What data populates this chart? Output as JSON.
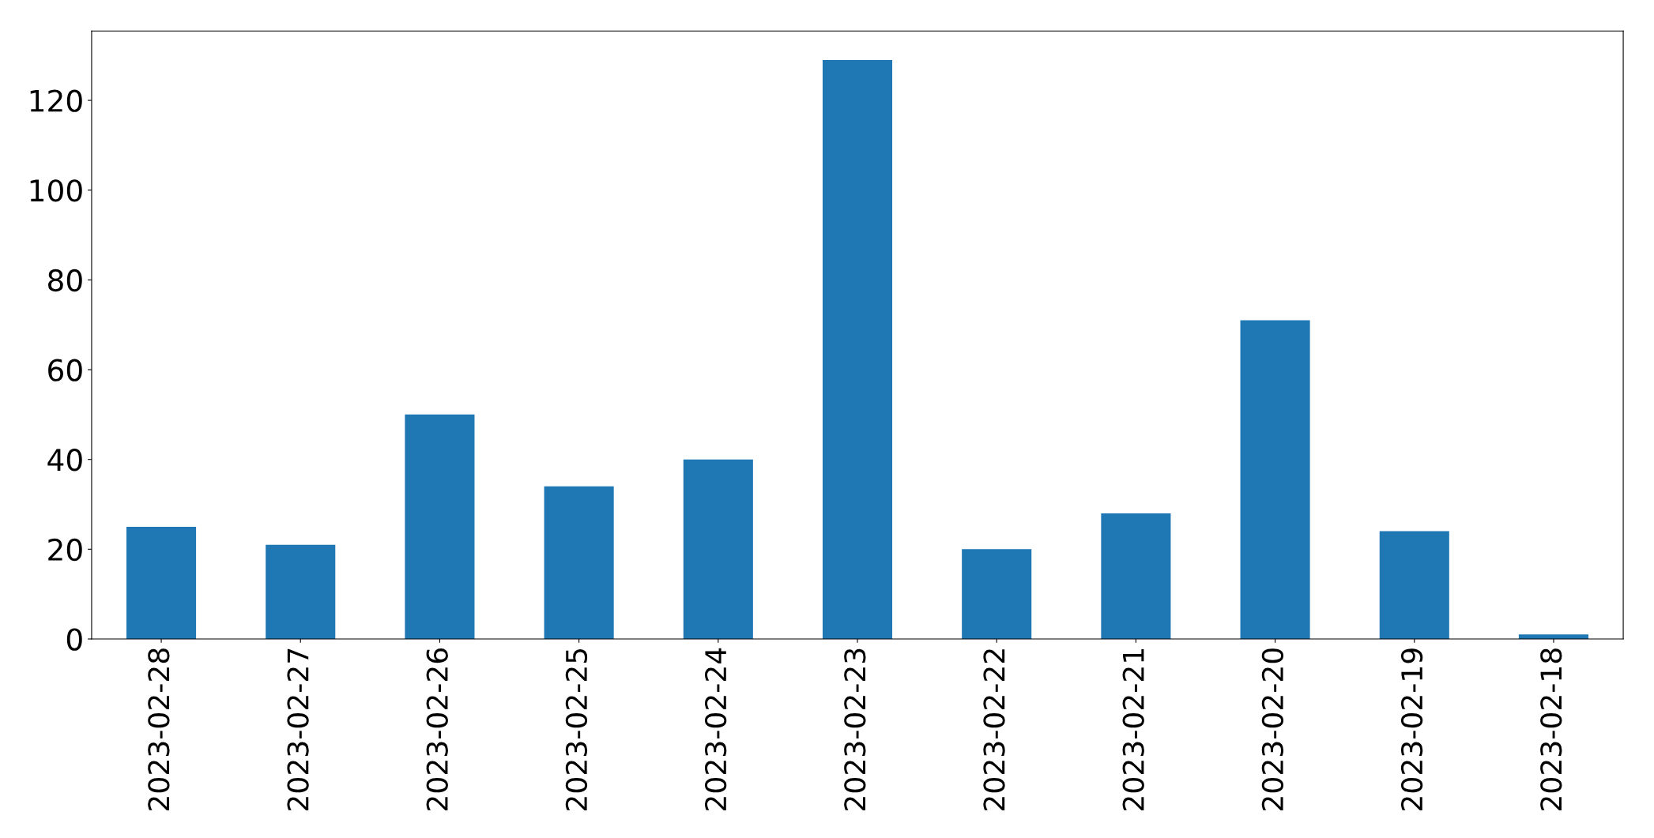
{
  "chart_data": {
    "type": "bar",
    "categories": [
      "2023-02-28",
      "2023-02-27",
      "2023-02-26",
      "2023-02-25",
      "2023-02-24",
      "2023-02-23",
      "2023-02-22",
      "2023-02-21",
      "2023-02-20",
      "2023-02-19",
      "2023-02-18"
    ],
    "values": [
      25,
      21,
      50,
      34,
      40,
      129,
      20,
      28,
      71,
      24,
      1
    ],
    "color": "#1f77b4",
    "ylim": [
      0,
      135.45
    ],
    "yticks": [
      0,
      20,
      40,
      60,
      80,
      100,
      120
    ],
    "grid": false
  }
}
